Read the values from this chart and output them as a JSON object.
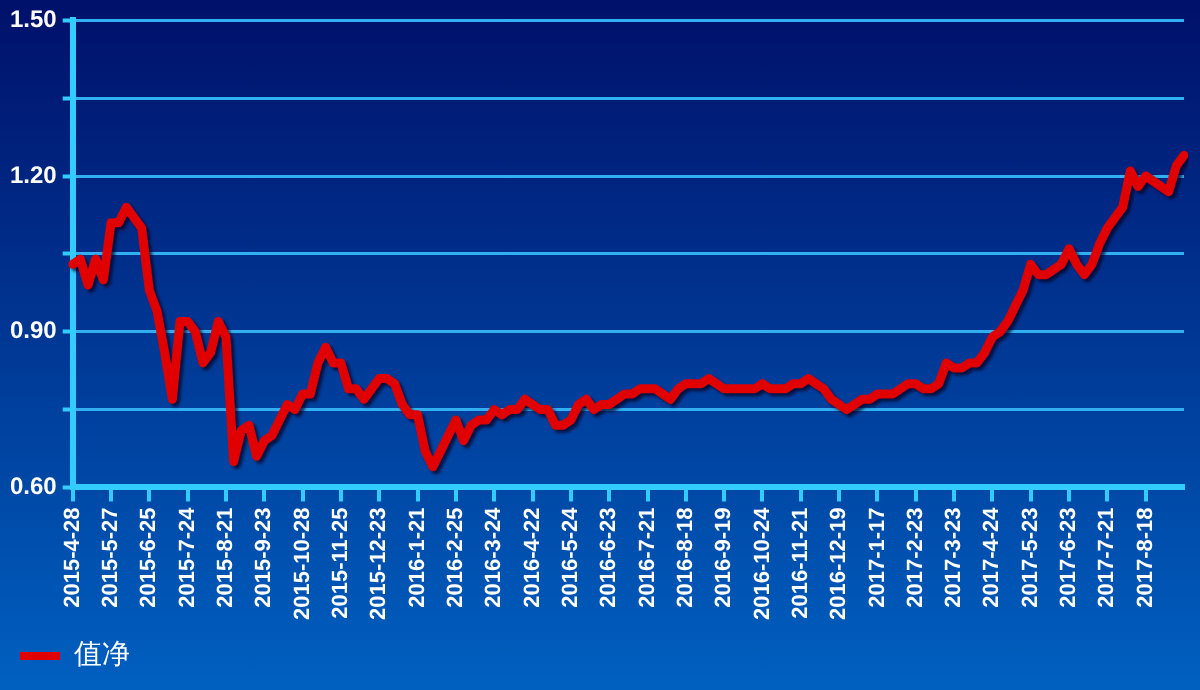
{
  "chart_data": {
    "type": "line",
    "categories": [
      "2015-4-28",
      null,
      null,
      null,
      null,
      "2015-5-27",
      null,
      null,
      null,
      null,
      "2015-6-25",
      null,
      null,
      null,
      null,
      "2015-7-24",
      null,
      null,
      null,
      null,
      "2015-8-21",
      null,
      null,
      null,
      null,
      "2015-9-23",
      null,
      null,
      null,
      null,
      "2015-10-28",
      null,
      null,
      null,
      null,
      "2015-11-25",
      null,
      null,
      null,
      null,
      "2015-12-23",
      null,
      null,
      null,
      null,
      "2016-1-21",
      null,
      null,
      null,
      null,
      "2016-2-25",
      null,
      null,
      null,
      null,
      "2016-3-24",
      null,
      null,
      null,
      null,
      "2016-4-22",
      null,
      null,
      null,
      null,
      "2016-5-24",
      null,
      null,
      null,
      null,
      "2016-6-23",
      null,
      null,
      null,
      null,
      "2016-7-21",
      null,
      null,
      null,
      null,
      "2016-8-18",
      null,
      null,
      null,
      null,
      "2016-9-19",
      null,
      null,
      null,
      null,
      "2016-10-24",
      null,
      null,
      null,
      null,
      "2016-11-21",
      null,
      null,
      null,
      null,
      "2016-12-19",
      null,
      null,
      null,
      null,
      "2017-1-17",
      null,
      null,
      null,
      null,
      "2017-2-23",
      null,
      null,
      null,
      null,
      "2017-3-23",
      null,
      null,
      null,
      null,
      "2017-4-24",
      null,
      null,
      null,
      null,
      "2017-5-23",
      null,
      null,
      null,
      null,
      "2017-6-23",
      null,
      null,
      null,
      null,
      "2017-7-21",
      null,
      null,
      null,
      null,
      "2017-8-18",
      null,
      null,
      null,
      null,
      null
    ],
    "series": [
      {
        "name": "值净",
        "color": "#e00000",
        "values": [
          1.03,
          1.04,
          0.99,
          1.04,
          1.0,
          1.11,
          1.11,
          1.14,
          1.12,
          1.1,
          0.98,
          0.94,
          0.86,
          0.77,
          0.92,
          0.92,
          0.9,
          0.84,
          0.86,
          0.92,
          0.89,
          0.65,
          0.71,
          0.72,
          0.66,
          0.69,
          0.7,
          0.73,
          0.76,
          0.75,
          0.78,
          0.78,
          0.84,
          0.87,
          0.84,
          0.84,
          0.79,
          0.79,
          0.77,
          0.79,
          0.81,
          0.81,
          0.8,
          0.76,
          0.74,
          0.74,
          0.67,
          0.64,
          0.67,
          0.7,
          0.73,
          0.69,
          0.72,
          0.73,
          0.73,
          0.75,
          0.74,
          0.75,
          0.75,
          0.77,
          0.76,
          0.75,
          0.75,
          0.72,
          0.72,
          0.73,
          0.76,
          0.77,
          0.75,
          0.76,
          0.76,
          0.77,
          0.78,
          0.78,
          0.79,
          0.79,
          0.79,
          0.78,
          0.77,
          0.79,
          0.8,
          0.8,
          0.8,
          0.81,
          0.8,
          0.79,
          0.79,
          0.79,
          0.79,
          0.79,
          0.8,
          0.79,
          0.79,
          0.79,
          0.8,
          0.8,
          0.81,
          0.8,
          0.79,
          0.77,
          0.76,
          0.75,
          0.76,
          0.77,
          0.77,
          0.78,
          0.78,
          0.78,
          0.79,
          0.8,
          0.8,
          0.79,
          0.79,
          0.8,
          0.84,
          0.83,
          0.83,
          0.84,
          0.84,
          0.86,
          0.89,
          0.9,
          0.92,
          0.95,
          0.98,
          1.03,
          1.01,
          1.01,
          1.02,
          1.03,
          1.06,
          1.03,
          1.01,
          1.03,
          1.07,
          1.1,
          1.12,
          1.14,
          1.21,
          1.18,
          1.2,
          1.19,
          1.18,
          1.17,
          1.22,
          1.24
        ]
      }
    ],
    "ylim": [
      0.6,
      1.5
    ],
    "yticks": [
      {
        "value": 0.6,
        "label": "0.60"
      },
      {
        "value": 0.75,
        "label": null
      },
      {
        "value": 0.9,
        "label": "0.90"
      },
      {
        "value": 1.05,
        "label": null
      },
      {
        "value": 1.2,
        "label": "1.20"
      },
      {
        "value": 1.35,
        "label": null
      },
      {
        "value": 1.5,
        "label": "1.50"
      }
    ],
    "grid": "y",
    "legend": "bottom left",
    "marker": "none",
    "line_style": "solid"
  }
}
